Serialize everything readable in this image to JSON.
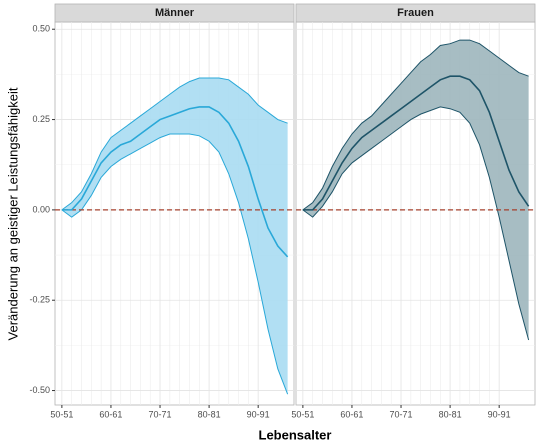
{
  "y_label": "Veränderung an geistiger Leistungsfähigkeit",
  "x_label": "Lebensalter",
  "chart_data": [
    {
      "type": "line",
      "title": "Männer",
      "x": [
        50,
        52,
        54,
        56,
        58,
        60,
        62,
        64,
        66,
        68,
        70,
        72,
        74,
        76,
        78,
        80,
        82,
        84,
        86,
        88,
        90,
        92,
        94,
        96
      ],
      "series": [
        {
          "color": "#29a8d8",
          "values": [
            0.0,
            0.0,
            0.03,
            0.08,
            0.13,
            0.16,
            0.18,
            0.19,
            0.21,
            0.23,
            0.25,
            0.26,
            0.27,
            0.28,
            0.285,
            0.285,
            0.27,
            0.24,
            0.19,
            0.12,
            0.03,
            -0.05,
            -0.1,
            -0.13
          ]
        }
      ],
      "band": {
        "color": "#29a8d8",
        "fill": "#a9dcf2",
        "upper": [
          0.0,
          0.02,
          0.05,
          0.1,
          0.16,
          0.2,
          0.22,
          0.24,
          0.26,
          0.28,
          0.3,
          0.32,
          0.34,
          0.355,
          0.365,
          0.365,
          0.365,
          0.36,
          0.34,
          0.32,
          0.29,
          0.27,
          0.25,
          0.24
        ],
        "lower": [
          0.0,
          -0.02,
          0.0,
          0.04,
          0.09,
          0.12,
          0.14,
          0.155,
          0.17,
          0.185,
          0.2,
          0.21,
          0.21,
          0.21,
          0.205,
          0.19,
          0.16,
          0.1,
          0.02,
          -0.08,
          -0.2,
          -0.33,
          -0.44,
          -0.51
        ]
      },
      "hline": 0,
      "hline_color": "#a5402d",
      "xlim": [
        48.6,
        97.3
      ],
      "ylim": [
        -0.54,
        0.52
      ],
      "xticks": [
        {
          "value": 50,
          "label": "50-51"
        },
        {
          "value": 60,
          "label": "60-61"
        },
        {
          "value": 70,
          "label": "70-71"
        },
        {
          "value": 80,
          "label": "80-81"
        },
        {
          "value": 90,
          "label": "90-91"
        }
      ],
      "yticks": [
        {
          "value": -0.5,
          "label": "-0.50"
        },
        {
          "value": -0.25,
          "label": "-0.25"
        },
        {
          "value": 0,
          "label": "0.00"
        },
        {
          "value": 0.25,
          "label": "0.25"
        },
        {
          "value": 0.5,
          "label": "0.50"
        }
      ],
      "grid": true
    },
    {
      "type": "line",
      "title": "Frauen",
      "x": [
        50,
        52,
        54,
        56,
        58,
        60,
        62,
        64,
        66,
        68,
        70,
        72,
        74,
        76,
        78,
        80,
        82,
        84,
        86,
        88,
        90,
        92,
        94,
        96
      ],
      "series": [
        {
          "color": "#1e5468",
          "values": [
            0.0,
            0.0,
            0.03,
            0.08,
            0.13,
            0.17,
            0.2,
            0.22,
            0.24,
            0.26,
            0.28,
            0.3,
            0.32,
            0.34,
            0.36,
            0.37,
            0.37,
            0.36,
            0.33,
            0.27,
            0.19,
            0.11,
            0.05,
            0.01
          ]
        }
      ],
      "band": {
        "color": "#1e5468",
        "fill": "#9db6bd",
        "upper": [
          0.0,
          0.02,
          0.06,
          0.12,
          0.17,
          0.21,
          0.24,
          0.26,
          0.29,
          0.32,
          0.35,
          0.38,
          0.41,
          0.43,
          0.455,
          0.46,
          0.47,
          0.47,
          0.46,
          0.44,
          0.42,
          0.4,
          0.38,
          0.37
        ],
        "lower": [
          0.0,
          -0.02,
          0.01,
          0.05,
          0.1,
          0.13,
          0.15,
          0.17,
          0.19,
          0.21,
          0.23,
          0.25,
          0.265,
          0.275,
          0.285,
          0.28,
          0.27,
          0.24,
          0.18,
          0.09,
          -0.02,
          -0.14,
          -0.26,
          -0.36
        ]
      },
      "hline": 0,
      "hline_color": "#a5402d",
      "xlim": [
        48.6,
        97.3
      ],
      "ylim": [
        -0.54,
        0.52
      ],
      "xticks": [
        {
          "value": 50,
          "label": "50-51"
        },
        {
          "value": 60,
          "label": "60-61"
        },
        {
          "value": 70,
          "label": "70-71"
        },
        {
          "value": 80,
          "label": "80-81"
        },
        {
          "value": 90,
          "label": "90-91"
        }
      ],
      "yticks": [
        {
          "value": -0.5,
          "label": "-0.50"
        },
        {
          "value": -0.25,
          "label": "-0.25"
        },
        {
          "value": 0,
          "label": "0.00"
        },
        {
          "value": 0.25,
          "label": "0.25"
        },
        {
          "value": 0.5,
          "label": "0.50"
        }
      ],
      "grid": true
    }
  ]
}
